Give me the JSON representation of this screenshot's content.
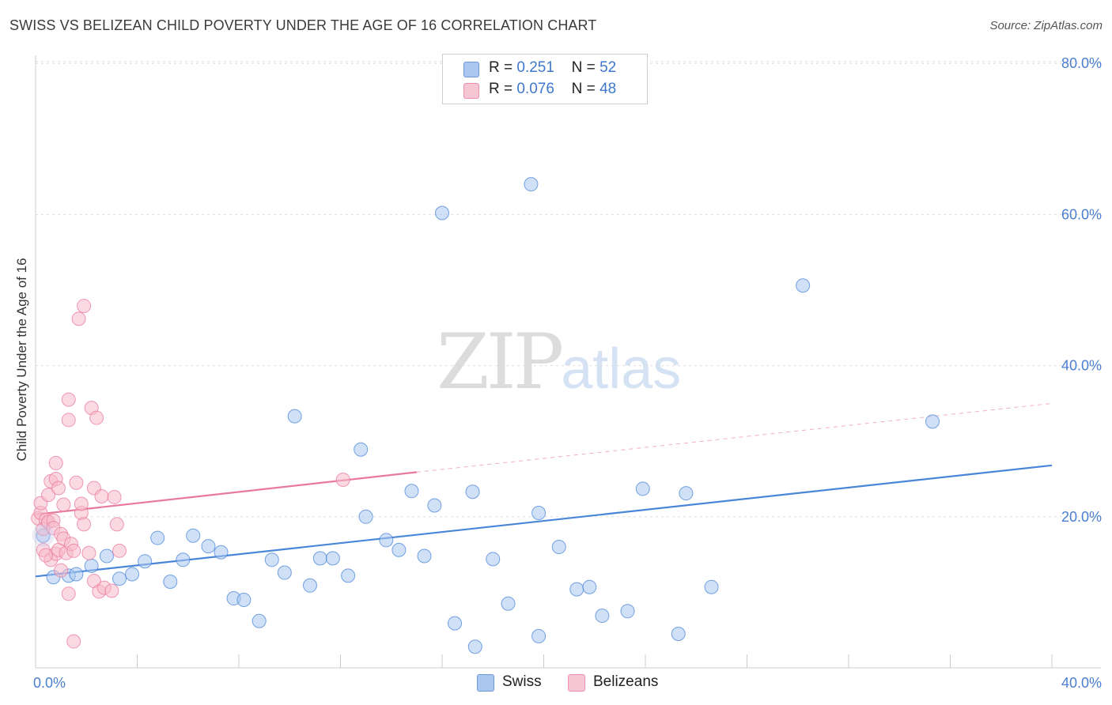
{
  "title": "SWISS VS BELIZEAN CHILD POVERTY UNDER THE AGE OF 16 CORRELATION CHART",
  "source": "Source: ZipAtlas.com",
  "watermark": {
    "part1": "ZIP",
    "part2": "atlas"
  },
  "legend": {
    "rows": [
      {
        "r_label": "R =",
        "r_value": "0.251",
        "n_label": "N =",
        "n_value": "52",
        "color": "#a9c6ef"
      },
      {
        "r_label": "R =",
        "r_value": "0.076",
        "n_label": "N =",
        "n_value": "48",
        "color": "#f7b9cb"
      }
    ]
  },
  "bottom_legend": [
    {
      "label": "Swiss",
      "color": "#a9c6ef"
    },
    {
      "label": "Belizeans",
      "color": "#f7b9cb"
    }
  ],
  "chart_data": {
    "type": "scatter",
    "title": "SWISS VS BELIZEAN CHILD POVERTY UNDER THE AGE OF 16 CORRELATION CHART",
    "xlabel": "",
    "ylabel": "Child Poverty Under the Age of 16",
    "xlim": [
      0,
      40
    ],
    "ylim": [
      0,
      82
    ],
    "x_tick_labels": [
      "0.0%",
      "40.0%"
    ],
    "y_ticks": [
      20,
      40,
      60,
      80
    ],
    "y_tick_labels": [
      "20.0%",
      "40.0%",
      "60.0%",
      "80.0%"
    ],
    "grid": true,
    "legend_position": "top-center",
    "series": [
      {
        "name": "Swiss",
        "color": "#4a86d8",
        "fill": "#a9c6ef",
        "trend": {
          "x0": 0,
          "y0": 12.1,
          "x1": 40,
          "y1": 26.8,
          "style": "solid"
        },
        "points": [
          [
            0.3,
            17.5
          ],
          [
            0.7,
            12.0
          ],
          [
            1.3,
            12.2
          ],
          [
            1.6,
            12.4
          ],
          [
            2.2,
            13.5
          ],
          [
            2.8,
            14.8
          ],
          [
            3.3,
            11.8
          ],
          [
            3.8,
            12.4
          ],
          [
            4.3,
            14.1
          ],
          [
            4.8,
            17.2
          ],
          [
            5.3,
            11.4
          ],
          [
            5.8,
            14.3
          ],
          [
            6.2,
            17.5
          ],
          [
            6.8,
            16.1
          ],
          [
            7.3,
            15.3
          ],
          [
            7.8,
            9.2
          ],
          [
            8.2,
            9.0
          ],
          [
            8.8,
            6.2
          ],
          [
            9.3,
            14.3
          ],
          [
            9.8,
            12.6
          ],
          [
            10.2,
            33.3
          ],
          [
            10.8,
            10.9
          ],
          [
            11.2,
            14.5
          ],
          [
            11.7,
            14.5
          ],
          [
            12.3,
            12.2
          ],
          [
            12.8,
            28.9
          ],
          [
            13.0,
            20.0
          ],
          [
            13.8,
            16.9
          ],
          [
            14.3,
            15.6
          ],
          [
            14.8,
            23.4
          ],
          [
            15.3,
            14.8
          ],
          [
            15.7,
            21.5
          ],
          [
            16.0,
            60.2
          ],
          [
            16.5,
            5.9
          ],
          [
            17.2,
            23.3
          ],
          [
            17.3,
            2.8
          ],
          [
            18.0,
            14.4
          ],
          [
            18.6,
            8.5
          ],
          [
            19.5,
            64.0
          ],
          [
            19.8,
            4.2
          ],
          [
            19.8,
            20.5
          ],
          [
            20.6,
            16.0
          ],
          [
            21.3,
            10.4
          ],
          [
            21.8,
            10.7
          ],
          [
            22.3,
            6.9
          ],
          [
            23.3,
            7.5
          ],
          [
            23.9,
            23.7
          ],
          [
            25.3,
            4.5
          ],
          [
            25.6,
            23.1
          ],
          [
            26.6,
            10.7
          ],
          [
            30.2,
            50.6
          ],
          [
            35.3,
            32.6
          ]
        ]
      },
      {
        "name": "Belizeans",
        "color": "#e8799d",
        "fill": "#f7b9cb",
        "trend": {
          "x0": 0,
          "y0": 20.3,
          "x1": 15,
          "y1": 25.9,
          "style": "solid",
          "ext_x1": 40,
          "ext_y1": 35.0,
          "ext_style": "dashed"
        },
        "points": [
          [
            0.1,
            19.8
          ],
          [
            0.2,
            20.5
          ],
          [
            0.2,
            21.8
          ],
          [
            0.3,
            18.4
          ],
          [
            0.3,
            15.6
          ],
          [
            0.4,
            19.6
          ],
          [
            0.5,
            22.9
          ],
          [
            0.5,
            19.3
          ],
          [
            0.6,
            24.7
          ],
          [
            0.6,
            14.3
          ],
          [
            0.7,
            19.5
          ],
          [
            0.7,
            18.5
          ],
          [
            0.8,
            15.1
          ],
          [
            0.8,
            25.0
          ],
          [
            0.8,
            27.1
          ],
          [
            0.9,
            23.8
          ],
          [
            0.9,
            15.6
          ],
          [
            1.0,
            12.9
          ],
          [
            1.0,
            17.7
          ],
          [
            1.1,
            17.1
          ],
          [
            1.1,
            21.6
          ],
          [
            1.2,
            15.2
          ],
          [
            1.3,
            35.5
          ],
          [
            1.3,
            32.8
          ],
          [
            1.3,
            9.8
          ],
          [
            1.4,
            16.4
          ],
          [
            1.5,
            3.5
          ],
          [
            1.5,
            15.5
          ],
          [
            1.6,
            24.5
          ],
          [
            1.7,
            46.2
          ],
          [
            1.8,
            20.5
          ],
          [
            1.8,
            21.7
          ],
          [
            1.9,
            19.0
          ],
          [
            1.9,
            47.9
          ],
          [
            2.1,
            15.2
          ],
          [
            2.2,
            34.4
          ],
          [
            2.3,
            23.8
          ],
          [
            2.3,
            11.5
          ],
          [
            2.4,
            33.1
          ],
          [
            2.5,
            10.1
          ],
          [
            2.6,
            22.7
          ],
          [
            2.7,
            10.6
          ],
          [
            3.0,
            10.2
          ],
          [
            3.1,
            22.6
          ],
          [
            3.2,
            19.0
          ],
          [
            3.3,
            15.5
          ],
          [
            12.1,
            24.9
          ],
          [
            0.4,
            14.9
          ]
        ]
      }
    ]
  }
}
